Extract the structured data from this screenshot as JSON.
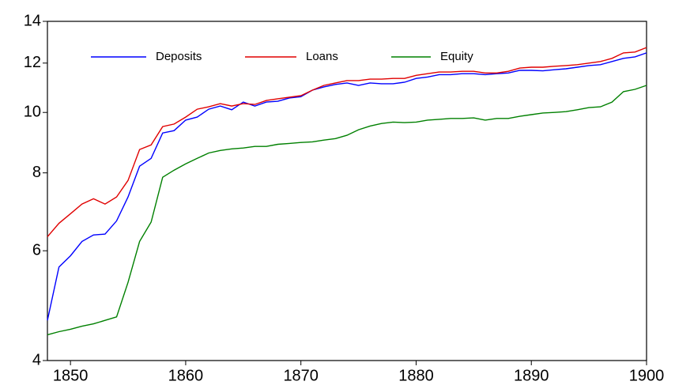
{
  "chart_data": {
    "type": "line",
    "log_y": true,
    "x": [
      1848,
      1849,
      1850,
      1851,
      1852,
      1853,
      1854,
      1855,
      1856,
      1857,
      1858,
      1859,
      1860,
      1861,
      1862,
      1863,
      1864,
      1865,
      1866,
      1867,
      1868,
      1869,
      1870,
      1871,
      1872,
      1873,
      1874,
      1875,
      1876,
      1877,
      1878,
      1879,
      1880,
      1881,
      1882,
      1883,
      1884,
      1885,
      1886,
      1887,
      1888,
      1889,
      1890,
      1891,
      1892,
      1893,
      1894,
      1895,
      1896,
      1897,
      1898,
      1899,
      1900
    ],
    "series": [
      {
        "name": "Deposits",
        "color": "#0000ff",
        "values": [
          4.64,
          5.65,
          5.89,
          6.21,
          6.36,
          6.38,
          6.7,
          7.32,
          8.2,
          8.44,
          9.27,
          9.35,
          9.72,
          9.83,
          10.12,
          10.24,
          10.1,
          10.39,
          10.24,
          10.39,
          10.42,
          10.55,
          10.6,
          10.86,
          10.99,
          11.09,
          11.15,
          11.05,
          11.15,
          11.12,
          11.12,
          11.18,
          11.34,
          11.4,
          11.5,
          11.5,
          11.54,
          11.54,
          11.5,
          11.54,
          11.57,
          11.68,
          11.68,
          11.66,
          11.71,
          11.75,
          11.82,
          11.89,
          11.93,
          12.07,
          12.21,
          12.28,
          12.46
        ]
      },
      {
        "name": "Loans",
        "color": "#e00000",
        "values": [
          6.32,
          6.64,
          6.88,
          7.13,
          7.27,
          7.13,
          7.32,
          7.78,
          8.72,
          8.87,
          9.49,
          9.58,
          9.83,
          10.12,
          10.21,
          10.33,
          10.24,
          10.33,
          10.3,
          10.45,
          10.52,
          10.58,
          10.64,
          10.86,
          11.05,
          11.15,
          11.25,
          11.25,
          11.31,
          11.31,
          11.34,
          11.34,
          11.47,
          11.54,
          11.61,
          11.61,
          11.64,
          11.64,
          11.57,
          11.57,
          11.64,
          11.78,
          11.82,
          11.82,
          11.86,
          11.89,
          11.93,
          12.0,
          12.07,
          12.21,
          12.46,
          12.5,
          12.71
        ]
      },
      {
        "name": "Equity",
        "color": "#008000",
        "values": [
          4.4,
          4.45,
          4.49,
          4.54,
          4.58,
          4.64,
          4.7,
          5.34,
          6.21,
          6.67,
          7.87,
          8.08,
          8.27,
          8.44,
          8.61,
          8.69,
          8.74,
          8.77,
          8.82,
          8.82,
          8.89,
          8.92,
          8.95,
          8.97,
          9.03,
          9.08,
          9.19,
          9.38,
          9.51,
          9.6,
          9.65,
          9.63,
          9.65,
          9.72,
          9.75,
          9.78,
          9.78,
          9.8,
          9.72,
          9.78,
          9.78,
          9.86,
          9.92,
          9.98,
          10.0,
          10.03,
          10.1,
          10.18,
          10.21,
          10.39,
          10.8,
          10.89,
          11.05
        ]
      }
    ],
    "xlim": [
      1848,
      1900
    ],
    "xticks": [
      1850,
      1860,
      1870,
      1880,
      1890,
      1900
    ],
    "ylim": [
      4,
      14
    ],
    "yticks": [
      4,
      6,
      8,
      10,
      12,
      14
    ]
  }
}
